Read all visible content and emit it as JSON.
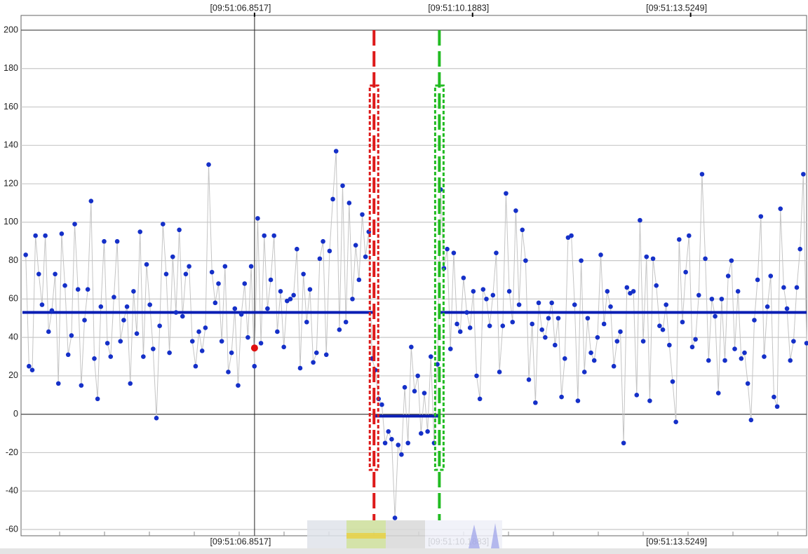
{
  "chart_data": {
    "type": "scatter-line",
    "x": [
      3.35,
      3.4,
      3.45,
      3.5,
      3.55,
      3.6,
      3.65,
      3.7,
      3.75,
      3.8,
      3.85,
      3.9,
      3.95,
      4,
      4.05,
      4.1,
      4.15,
      4.2,
      4.25,
      4.3,
      4.35,
      4.4,
      4.45,
      4.5,
      4.55,
      4.6,
      4.65,
      4.7,
      4.75,
      4.8,
      4.85,
      4.9,
      4.95,
      5,
      5.05,
      5.1,
      5.15,
      5.2,
      5.25,
      5.3,
      5.35,
      5.4,
      5.45,
      5.5,
      5.55,
      5.6,
      5.65,
      5.7,
      5.75,
      5.8,
      5.85,
      5.9,
      5.95,
      6,
      6.05,
      6.1,
      6.15,
      6.2,
      6.25,
      6.3,
      6.35,
      6.4,
      6.45,
      6.5,
      6.55,
      6.6,
      6.65,
      6.7,
      6.75,
      6.8,
      6.85,
      6.9,
      6.95,
      7,
      7.05,
      7.1,
      7.15,
      7.2,
      7.25,
      7.3,
      7.35,
      7.4,
      7.45,
      7.5,
      7.55,
      7.6,
      7.65,
      7.7,
      7.75,
      7.8,
      7.85,
      7.9,
      7.95,
      8,
      8.05,
      8.1,
      8.15,
      8.2,
      8.25,
      8.3,
      8.35,
      8.4,
      8.45,
      8.5,
      8.55,
      8.6,
      8.65,
      8.7,
      8.75,
      8.8,
      8.85,
      8.9,
      8.95,
      9,
      9.05,
      9.1,
      9.15,
      9.2,
      9.25,
      9.3,
      9.35,
      9.4,
      9.45,
      9.5,
      9.55,
      9.6,
      9.65,
      9.7,
      9.75,
      9.8,
      9.85,
      9.9,
      9.95,
      10,
      10.05,
      10.1,
      10.15,
      10.2,
      10.25,
      10.3,
      10.35,
      10.4,
      10.45,
      10.5,
      10.55,
      10.6,
      10.65,
      10.7,
      10.75,
      10.8,
      10.85,
      10.9,
      10.95,
      11,
      11.05,
      11.1,
      11.15,
      11.2,
      11.25,
      11.3,
      11.35,
      11.4,
      11.45,
      11.5,
      11.55,
      11.6,
      11.65,
      11.7,
      11.75,
      11.8,
      11.85,
      11.9,
      11.95,
      12,
      12.05,
      12.1,
      12.15,
      12.2,
      12.25,
      12.3,
      12.35,
      12.4,
      12.45,
      12.5,
      12.55,
      12.6,
      12.65,
      12.7,
      12.75,
      12.8,
      12.85,
      12.9,
      12.95,
      13,
      13.05,
      13.1,
      13.15,
      13.2,
      13.25,
      13.3,
      13.35,
      13.4,
      13.45,
      13.5,
      13.55,
      13.6,
      13.65,
      13.7,
      13.75,
      13.8,
      13.85,
      13.9,
      13.95,
      14,
      14.05,
      14.1,
      14.15,
      14.2,
      14.25,
      14.3,
      14.35,
      14.4,
      14.45,
      14.5,
      14.55,
      14.6,
      14.65,
      14.7,
      14.75,
      14.8,
      14.85,
      14.9,
      14.95,
      15,
      15.05,
      15.1,
      15.15,
      15.2,
      15.25,
      15.3
    ],
    "values": [
      83,
      25,
      23,
      93,
      73,
      57,
      93,
      43,
      54,
      73,
      16,
      94,
      67,
      31,
      41,
      99,
      65,
      15,
      49,
      65,
      111,
      29,
      8,
      56,
      90,
      37,
      30,
      61,
      90,
      38,
      49,
      56,
      16,
      64,
      42,
      95,
      30,
      78,
      57,
      34,
      -2,
      46,
      99,
      73,
      32,
      82,
      53,
      96,
      51,
      73,
      77,
      38,
      25,
      43,
      33,
      45,
      130,
      74,
      58,
      68,
      38,
      77,
      22,
      32,
      55,
      15,
      52,
      68,
      40,
      77,
      25,
      102,
      37,
      93,
      55,
      70,
      93,
      43,
      64,
      35,
      59,
      60,
      62,
      86,
      24,
      73,
      48,
      65,
      27,
      32,
      81,
      90,
      31,
      85,
      112,
      137,
      44,
      119,
      48,
      110,
      60,
      88,
      70,
      104,
      82,
      95,
      29,
      23,
      8,
      5,
      -15,
      -9,
      -13,
      -54,
      -16,
      -21,
      14,
      -15,
      35,
      12,
      20,
      -10,
      11,
      -9,
      30,
      -15,
      26,
      117,
      76,
      86,
      34,
      84,
      47,
      43,
      71,
      53,
      45,
      64,
      20,
      8,
      65,
      60,
      46,
      62,
      84,
      22,
      46,
      115,
      64,
      48,
      106,
      57,
      96,
      80,
      18,
      47,
      6,
      58,
      44,
      40,
      50,
      58,
      36,
      50,
      9,
      29,
      92,
      93,
      57,
      7,
      80,
      22,
      50,
      32,
      28,
      40,
      83,
      47,
      64,
      56,
      25,
      38,
      43,
      -15,
      66,
      63,
      64,
      10,
      101,
      38,
      82,
      7,
      81,
      67,
      46,
      44,
      57,
      36,
      17,
      -4,
      91,
      48,
      74,
      93,
      35,
      39,
      62,
      125,
      81,
      28,
      60,
      51,
      11,
      60,
      28,
      72,
      80,
      34,
      64,
      29,
      32,
      16,
      -3,
      49,
      70,
      103,
      30,
      56,
      72,
      9,
      4,
      107,
      66,
      55,
      28,
      38,
      66,
      86,
      125,
      37
    ],
    "color": "#1530c8",
    "line_color": "#c4c4c4",
    "mean_segments": [
      {
        "x": [
          3.3,
          8.7
        ],
        "y": 53
      },
      {
        "x": [
          8.7,
          9.68
        ],
        "y": -1
      },
      {
        "x": [
          9.68,
          15.3
        ],
        "y": 53
      }
    ],
    "mean_color": "#0a1eb4",
    "markers": [
      {
        "x": 8.68,
        "color": "#dd1a1a"
      },
      {
        "x": 9.68,
        "color": "#22bb22"
      }
    ],
    "cursor": {
      "x": 6.8517,
      "y": 34.5,
      "color": "#e01010"
    },
    "xlim": [
      3.3,
      15.3
    ],
    "xticks": [
      {
        "value": 6.8517,
        "label": "[09:51:06.8517]"
      },
      {
        "value": 10.1883,
        "label": "[09:51:10.1883]"
      },
      {
        "value": 13.5249,
        "label": "[09:51:13.5249]"
      }
    ],
    "ylim": [
      -60,
      200
    ],
    "yticks": [
      -60,
      -40,
      -20,
      0,
      20,
      40,
      60,
      80,
      100,
      120,
      140,
      160,
      180,
      200
    ],
    "grid": true
  }
}
